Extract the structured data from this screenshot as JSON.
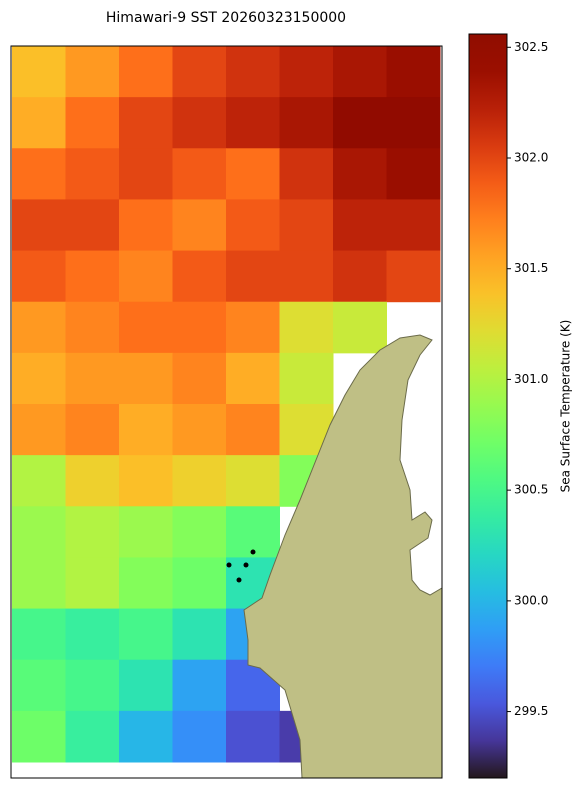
{
  "chart_data": {
    "type": "heatmap",
    "title": "Himawari-9 SST 20260323150000",
    "colorbar_label": "Sea Surface Temperature (K)",
    "colormap": "turbo",
    "vlim": [
      299.2,
      302.56
    ],
    "colorbar_ticks": [
      299.5,
      {
        "value": 300.0,
        "label": "300.0"
      },
      300.5,
      {
        "value": 301.0,
        "label": "301.0"
      },
      301.5,
      {
        "value": 302.0,
        "label": "302.0"
      },
      302.5
    ],
    "values": [
      [
        301.4,
        301.6,
        301.8,
        302.0,
        302.1,
        302.2,
        302.3,
        302.4
      ],
      [
        301.5,
        301.8,
        302.0,
        302.1,
        302.2,
        302.3,
        302.5,
        302.5
      ],
      [
        301.8,
        301.9,
        302.0,
        301.9,
        301.8,
        302.1,
        302.3,
        302.4
      ],
      [
        302.0,
        302.0,
        301.8,
        301.7,
        301.9,
        302.0,
        302.2,
        302.2
      ],
      [
        301.9,
        301.8,
        301.7,
        301.9,
        302.0,
        302.0,
        302.1,
        302.0
      ],
      [
        301.6,
        301.7,
        301.8,
        301.8,
        301.7,
        301.2,
        301.1,
        null
      ],
      [
        301.5,
        301.6,
        301.6,
        301.7,
        301.5,
        301.1,
        null,
        null
      ],
      [
        301.6,
        301.7,
        301.5,
        301.6,
        301.7,
        301.2,
        null,
        null
      ],
      [
        301.0,
        301.3,
        301.4,
        301.3,
        301.2,
        300.8,
        null,
        null
      ],
      [
        300.9,
        301.0,
        300.9,
        300.8,
        300.6,
        null,
        null,
        null
      ],
      [
        300.9,
        301.0,
        300.8,
        300.7,
        300.3,
        null,
        null,
        null
      ],
      [
        300.5,
        300.4,
        300.5,
        300.3,
        299.9,
        null,
        null,
        null
      ],
      [
        300.6,
        300.5,
        300.3,
        299.9,
        299.6,
        null,
        null,
        null
      ],
      [
        300.7,
        300.4,
        300.0,
        299.8,
        299.5,
        299.4,
        null,
        null
      ]
    ]
  }
}
